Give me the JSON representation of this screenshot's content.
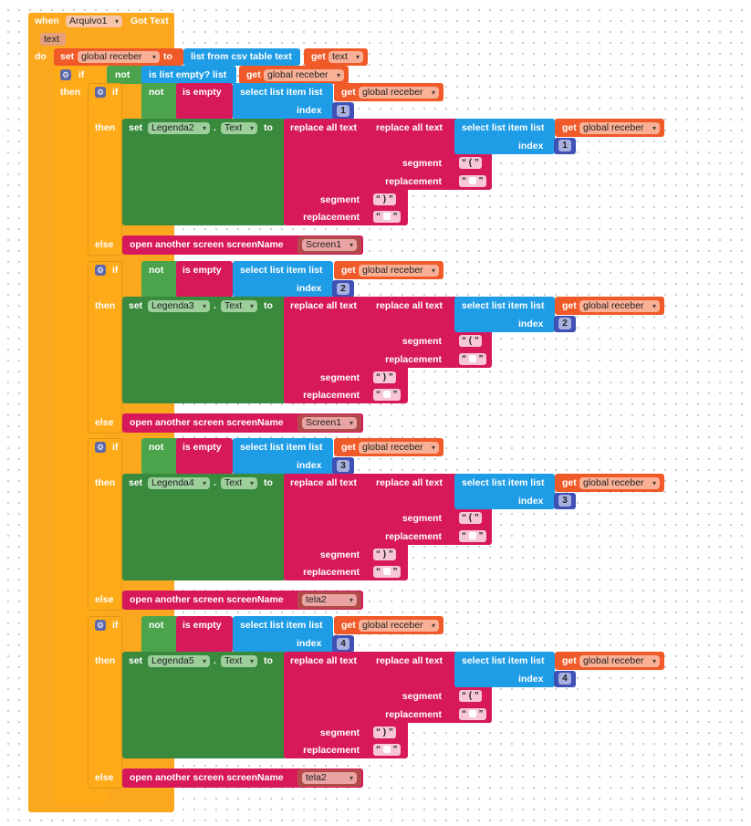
{
  "event": {
    "when": "when",
    "component": "Arquivo1",
    "event_name": "Got Text",
    "param": "text",
    "do": "do"
  },
  "set_global": {
    "set": "set",
    "var": "global receber",
    "to": "to",
    "list_from_csv": "list from csv table  text",
    "get": "get",
    "get_var": "text"
  },
  "outer_if": {
    "if": "if",
    "not": "not",
    "is_list_empty": "is list empty?  list",
    "get": "get",
    "var": "global receber",
    "then": "then"
  },
  "blocks": [
    {
      "index": "1",
      "label": "Legenda2",
      "else_screen": "Screen1"
    },
    {
      "index": "2",
      "label": "Legenda3",
      "else_screen": "Screen1"
    },
    {
      "index": "3",
      "label": "Legenda4",
      "else_screen": "tela2"
    },
    {
      "index": "4",
      "label": "Legenda5",
      "else_screen": "tela2"
    }
  ],
  "common": {
    "if": "if",
    "not": "not",
    "is_empty": "is empty",
    "select_list_item": "select list item  list",
    "get": "get",
    "global_receber": "global receber",
    "index": "index",
    "then": "then",
    "else": "else",
    "set": "set",
    "dot": ".",
    "text_prop": "Text",
    "to": "to",
    "replace_all": "replace all text",
    "segment": "segment",
    "replacement": "replacement",
    "seg_open": "(",
    "seg_close": ")",
    "empty": "",
    "open_screen": "open another screen  screenName"
  }
}
